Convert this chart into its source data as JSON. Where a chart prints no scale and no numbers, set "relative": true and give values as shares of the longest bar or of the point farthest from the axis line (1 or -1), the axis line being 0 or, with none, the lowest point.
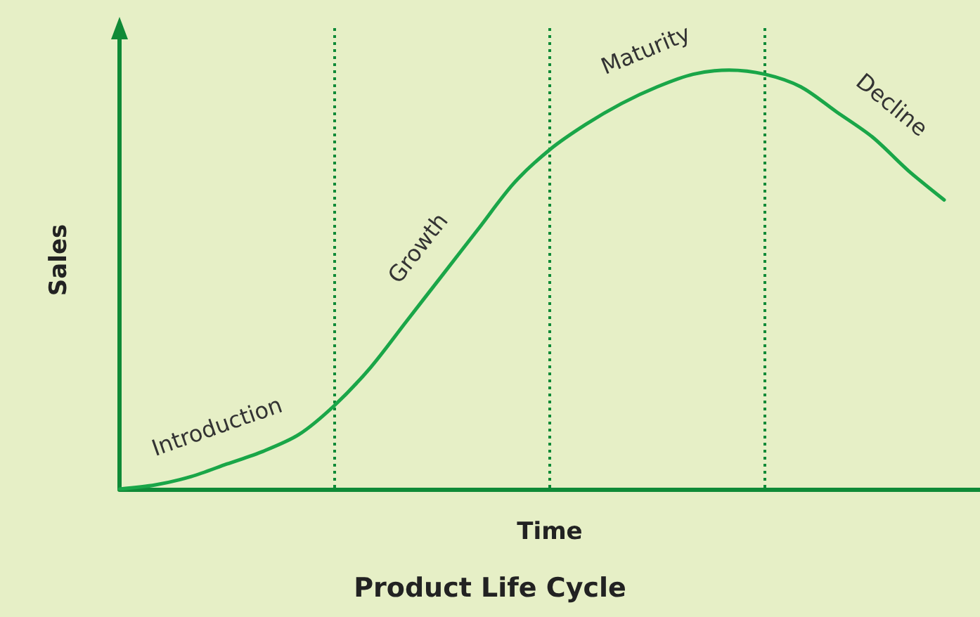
{
  "chart_data": {
    "type": "line",
    "title": "Product Life Cycle",
    "xlabel": "Time",
    "ylabel": "Sales",
    "relative": true,
    "categories": [
      null,
      null,
      null,
      null,
      null,
      null,
      null,
      null,
      null,
      null,
      null,
      null,
      null,
      null,
      null,
      null,
      null,
      null,
      null,
      null,
      null,
      null,
      null,
      null,
      null
    ],
    "series": [
      {
        "color": "#1aa648",
        "values": [
          0,
          0.01,
          0.03,
          0.06,
          0.09,
          0.13,
          0.2,
          0.29,
          0.4,
          0.51,
          0.62,
          0.73,
          0.81,
          0.87,
          0.92,
          0.96,
          0.99,
          1,
          0.99,
          0.96,
          0.9,
          0.84,
          0.76,
          0.69,
          null
        ]
      }
    ],
    "annotations": [
      "Introduction",
      "Growth",
      "Maturity",
      "Decline"
    ],
    "grid": "x",
    "marker": "none",
    "line_style": "solid"
  }
}
